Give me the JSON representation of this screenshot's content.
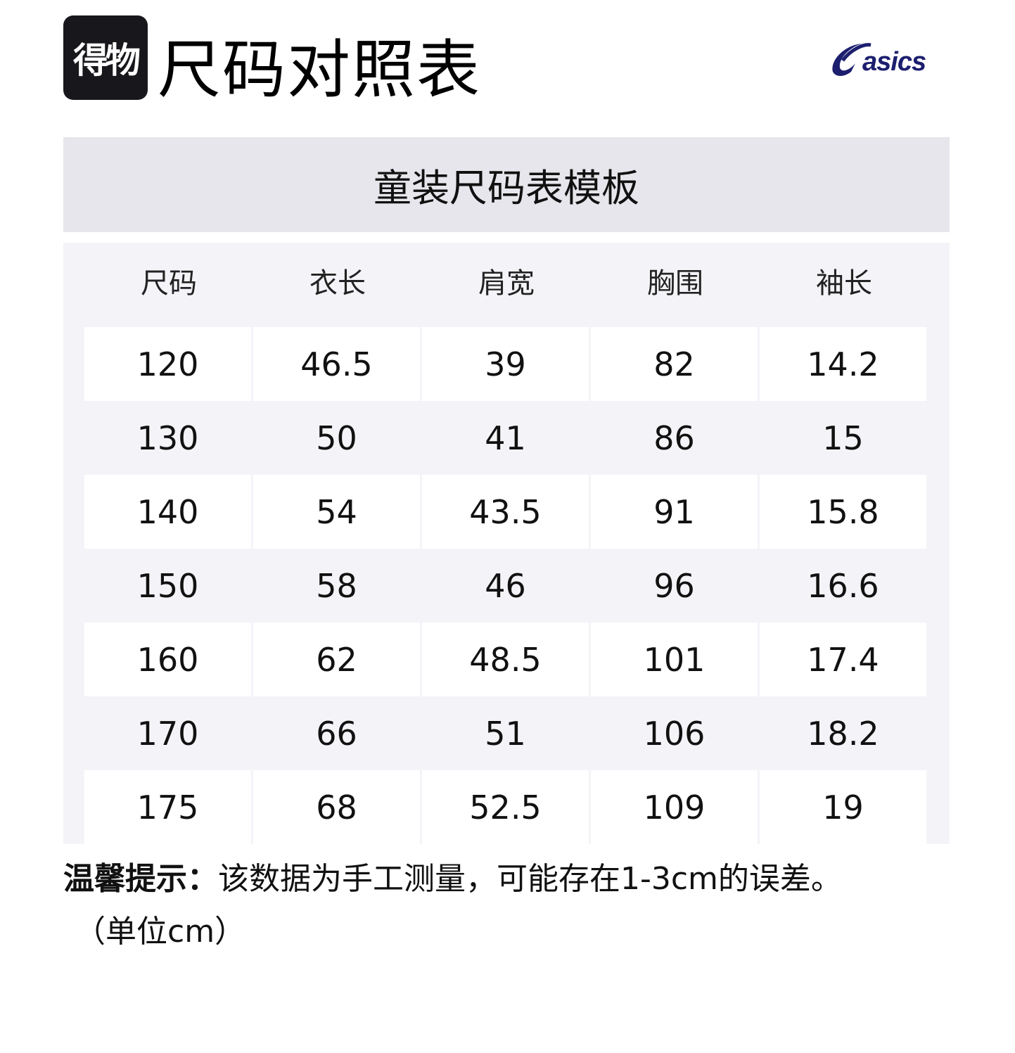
{
  "header": {
    "logo_text": "得物",
    "title": "尺码对照表",
    "brand_logo": "asics",
    "brand_color": "#1c1f6e"
  },
  "subheader": "童装尺码表模板",
  "table": {
    "columns": [
      "尺码",
      "衣长",
      "肩宽",
      "胸围",
      "袖长"
    ],
    "rows": [
      [
        "120",
        "46.5",
        "39",
        "82",
        "14.2"
      ],
      [
        "130",
        "50",
        "41",
        "86",
        "15"
      ],
      [
        "140",
        "54",
        "43.5",
        "91",
        "15.8"
      ],
      [
        "150",
        "58",
        "46",
        "96",
        "16.6"
      ],
      [
        "160",
        "62",
        "48.5",
        "101",
        "17.4"
      ],
      [
        "170",
        "66",
        "51",
        "106",
        "18.2"
      ],
      [
        "175",
        "68",
        "52.5",
        "109",
        "19"
      ]
    ]
  },
  "note": {
    "label": "温馨提示：",
    "text": "该数据为手工测量，可能存在1-3cm的误差。",
    "unit": "（单位cm）"
  }
}
